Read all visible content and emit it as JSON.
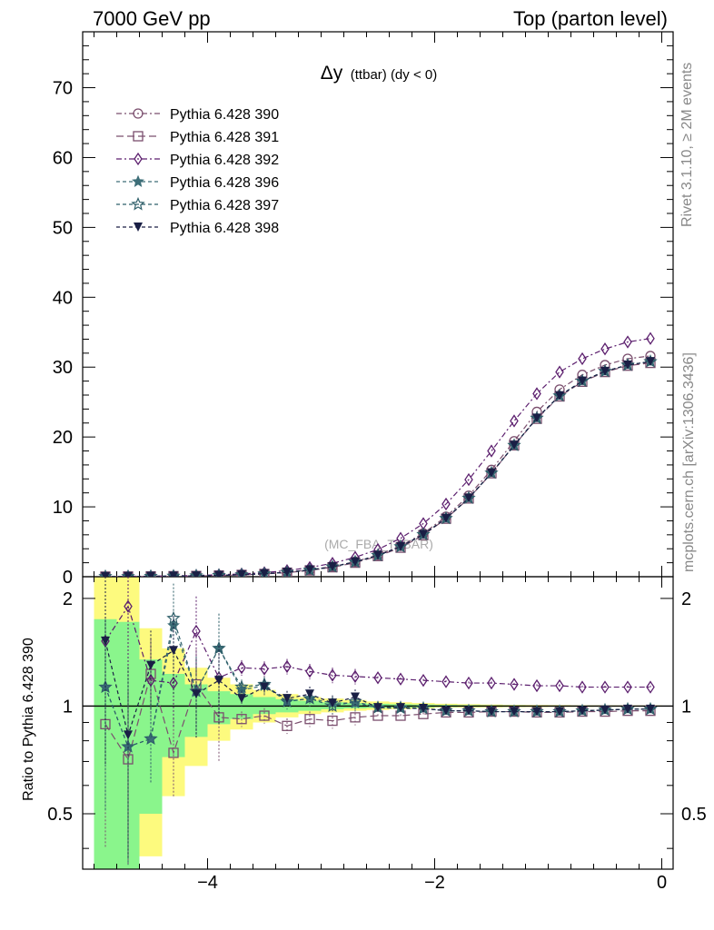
{
  "header": {
    "left": "7000 GeV pp",
    "right": "Top (parton level)"
  },
  "side_labels": {
    "rivet": "Rivet 3.1.10, ≥ 2M events",
    "mcplots": "mcplots.cern.ch [arXiv:1306.3436]"
  },
  "watermark": "(MC_FBA_TTBAR)",
  "chart_data": [
    {
      "type": "line",
      "title": "Δy",
      "title_sub": "(ttbar) (dy < 0)",
      "xlabel": "",
      "ylabel": "",
      "xlim": [
        -5.1,
        0.1
      ],
      "ylim": [
        0,
        78
      ],
      "x_ticks": [
        -4,
        -2,
        0
      ],
      "x_tick_labels": [
        "−4",
        "−2",
        "0"
      ],
      "y_ticks": [
        0,
        10,
        20,
        30,
        40,
        50,
        60,
        70
      ],
      "y_tick_labels": [
        "0",
        "10",
        "20",
        "30",
        "40",
        "50",
        "60",
        "70"
      ],
      "legend_position": "top-left",
      "x": [
        -4.9,
        -4.7,
        -4.5,
        -4.3,
        -4.1,
        -3.9,
        -3.7,
        -3.5,
        -3.3,
        -3.1,
        -2.9,
        -2.7,
        -2.5,
        -2.3,
        -2.1,
        -1.9,
        -1.7,
        -1.5,
        -1.3,
        -1.1,
        -0.9,
        -0.7,
        -0.5,
        -0.3,
        -0.1
      ],
      "series": [
        {
          "name": "Pythia 6.428 390",
          "marker": "circle-open",
          "color": "#7b4f6e",
          "dash": "6,3,2,3",
          "values": [
            0.02,
            0.03,
            0.05,
            0.08,
            0.12,
            0.18,
            0.28,
            0.42,
            0.65,
            0.98,
            1.45,
            2.15,
            3.1,
            4.4,
            6.2,
            8.6,
            11.6,
            15.3,
            19.4,
            23.6,
            26.8,
            28.9,
            30.3,
            31.2,
            31.6
          ]
        },
        {
          "name": "Pythia 6.428 391",
          "marker": "square-open",
          "color": "#7b4f6e",
          "dash": "8,4",
          "values": [
            0.02,
            0.03,
            0.05,
            0.08,
            0.11,
            0.17,
            0.26,
            0.39,
            0.58,
            0.9,
            1.35,
            2.0,
            2.95,
            4.15,
            5.95,
            8.3,
            11.2,
            14.8,
            18.8,
            22.6,
            25.8,
            27.9,
            29.3,
            30.2,
            30.6
          ]
        },
        {
          "name": "Pythia 6.428 392",
          "marker": "diamond-open",
          "color": "#5c1f6e",
          "dash": "6,3,2,3",
          "values": [
            0.03,
            0.05,
            0.08,
            0.12,
            0.18,
            0.28,
            0.4,
            0.58,
            0.88,
            1.32,
            1.92,
            2.78,
            3.9,
            5.5,
            7.6,
            10.4,
            13.9,
            18.0,
            22.3,
            26.2,
            29.3,
            31.2,
            32.6,
            33.6,
            34.1
          ]
        },
        {
          "name": "Pythia 6.428 396",
          "marker": "star-solid",
          "color": "#3d6e78",
          "dash": "4,3",
          "values": [
            0.02,
            0.03,
            0.05,
            0.09,
            0.13,
            0.19,
            0.29,
            0.42,
            0.63,
            0.95,
            1.42,
            2.12,
            3.05,
            4.3,
            6.05,
            8.35,
            11.25,
            14.85,
            18.8,
            22.7,
            25.9,
            28.0,
            29.4,
            30.3,
            30.8
          ]
        },
        {
          "name": "Pythia 6.428 397",
          "marker": "star-open",
          "color": "#2f5f6a",
          "dash": "4,3",
          "values": [
            0.02,
            0.03,
            0.05,
            0.09,
            0.13,
            0.19,
            0.29,
            0.42,
            0.63,
            0.95,
            1.42,
            2.12,
            3.05,
            4.3,
            6.05,
            8.35,
            11.25,
            14.85,
            18.8,
            22.7,
            25.9,
            28.0,
            29.4,
            30.3,
            30.8
          ]
        },
        {
          "name": "Pythia 6.428 398",
          "marker": "triangle-down-solid",
          "color": "#1a1f45",
          "dash": "4,3",
          "values": [
            0.02,
            0.03,
            0.05,
            0.08,
            0.12,
            0.18,
            0.28,
            0.42,
            0.64,
            0.97,
            1.43,
            2.12,
            3.05,
            4.3,
            6.05,
            8.35,
            11.25,
            14.85,
            18.8,
            22.7,
            25.9,
            28.0,
            29.4,
            30.3,
            30.8
          ]
        }
      ]
    },
    {
      "type": "line",
      "ylabel": "Ratio to Pythia 6.428 390",
      "xlim": [
        -5.1,
        0.1
      ],
      "ylim": [
        0.35,
        2.3
      ],
      "y_scale": "log",
      "y_ticks": [
        0.5,
        1,
        2
      ],
      "y_tick_labels": [
        "0.5",
        "1",
        "2"
      ],
      "x_ticks": [
        -4,
        -2,
        0
      ],
      "x_tick_labels": [
        "−4",
        "−2",
        "0"
      ],
      "reference_line": 1,
      "bands": {
        "x_edges": [
          -5.0,
          -4.8,
          -4.6,
          -4.4,
          -4.2,
          -4.0,
          -3.8,
          -3.6,
          -3.4,
          -3.2,
          -3.0,
          -2.8,
          -2.6,
          -2.4,
          -2.2,
          -2.0,
          -1.8,
          -1.6,
          -1.4,
          -1.2,
          -1.0,
          -0.8,
          -0.6,
          -0.4,
          -0.2,
          0.0
        ],
        "yellow_lo": [
          0.25,
          0.25,
          0.38,
          0.56,
          0.68,
          0.8,
          0.86,
          0.9,
          0.93,
          0.95,
          0.96,
          0.97,
          0.975,
          0.98,
          0.985,
          0.99,
          0.99,
          0.992,
          0.993,
          0.994,
          0.995,
          0.995,
          0.996,
          0.996,
          0.997
        ],
        "yellow_hi": [
          2.6,
          2.6,
          1.65,
          1.45,
          1.28,
          1.2,
          1.15,
          1.11,
          1.08,
          1.06,
          1.05,
          1.04,
          1.03,
          1.025,
          1.02,
          1.015,
          1.012,
          1.01,
          1.008,
          1.007,
          1.006,
          1.005,
          1.005,
          1.004,
          1.004
        ],
        "green_lo": [
          0.3,
          0.3,
          0.5,
          0.72,
          0.82,
          0.89,
          0.92,
          0.95,
          0.96,
          0.97,
          0.98,
          0.985,
          0.988,
          0.99,
          0.992,
          0.994,
          0.995,
          0.996,
          0.996,
          0.997,
          0.997,
          0.998,
          0.998,
          0.998,
          0.998
        ],
        "green_hi": [
          1.75,
          1.72,
          1.35,
          1.23,
          1.15,
          1.1,
          1.08,
          1.06,
          1.045,
          1.035,
          1.025,
          1.02,
          1.015,
          1.012,
          1.01,
          1.008,
          1.006,
          1.005,
          1.004,
          1.003,
          1.003,
          1.002,
          1.002,
          1.002,
          1.002
        ]
      },
      "x": [
        -4.9,
        -4.7,
        -4.5,
        -4.3,
        -4.1,
        -3.9,
        -3.7,
        -3.5,
        -3.3,
        -3.1,
        -2.9,
        -2.7,
        -2.5,
        -2.3,
        -2.1,
        -1.9,
        -1.7,
        -1.5,
        -1.3,
        -1.1,
        -0.9,
        -0.7,
        -0.5,
        -0.3,
        -0.1
      ],
      "series": [
        {
          "name": "Pythia 6.428 391",
          "marker": "square-open",
          "color": "#7b4f6e",
          "dash": "8,4",
          "values": [
            0.89,
            0.71,
            1.23,
            0.74,
            1.15,
            0.93,
            0.92,
            0.94,
            0.88,
            0.92,
            0.91,
            0.93,
            0.94,
            0.94,
            0.95,
            0.96,
            0.96,
            0.965,
            0.965,
            0.96,
            0.96,
            0.965,
            0.965,
            0.97,
            0.97
          ]
        },
        {
          "name": "Pythia 6.428 392",
          "marker": "diamond-open",
          "color": "#5c1f6e",
          "dash": "6,3,2,3",
          "values": [
            1.52,
            1.9,
            1.18,
            1.16,
            1.62,
            1.2,
            1.28,
            1.27,
            1.29,
            1.25,
            1.22,
            1.21,
            1.2,
            1.19,
            1.18,
            1.17,
            1.16,
            1.16,
            1.15,
            1.14,
            1.14,
            1.13,
            1.13,
            1.13,
            1.13
          ]
        },
        {
          "name": "Pythia 6.428 396",
          "marker": "star-solid",
          "color": "#3d6e78",
          "dash": "4,3",
          "values": [
            1.13,
            0.77,
            0.81,
            1.68,
            1.1,
            1.45,
            1.11,
            1.14,
            1.03,
            1.05,
            1.02,
            1.02,
            0.99,
            0.985,
            0.985,
            0.97,
            0.97,
            0.965,
            0.965,
            0.965,
            0.965,
            0.97,
            0.975,
            0.98,
            0.98
          ]
        },
        {
          "name": "Pythia 6.428 397",
          "marker": "star-open",
          "color": "#2f5f6a",
          "dash": "4,3",
          "values": [
            1.13,
            0.77,
            0.81,
            1.76,
            1.1,
            1.45,
            1.13,
            1.15,
            1.03,
            1.05,
            1.0,
            1.03,
            0.99,
            0.99,
            0.985,
            0.97,
            0.97,
            0.965,
            0.965,
            0.965,
            0.965,
            0.97,
            0.975,
            0.98,
            0.98
          ]
        },
        {
          "name": "Pythia 6.428 398",
          "marker": "triangle-down-solid",
          "color": "#1a1f45",
          "dash": "4,3",
          "values": [
            1.52,
            0.83,
            1.3,
            1.43,
            1.08,
            1.18,
            1.05,
            1.13,
            1.05,
            1.08,
            1.02,
            1.06,
            0.99,
            0.99,
            0.985,
            0.97,
            0.97,
            0.965,
            0.965,
            0.965,
            0.965,
            0.97,
            0.975,
            0.98,
            0.98
          ]
        }
      ]
    }
  ]
}
